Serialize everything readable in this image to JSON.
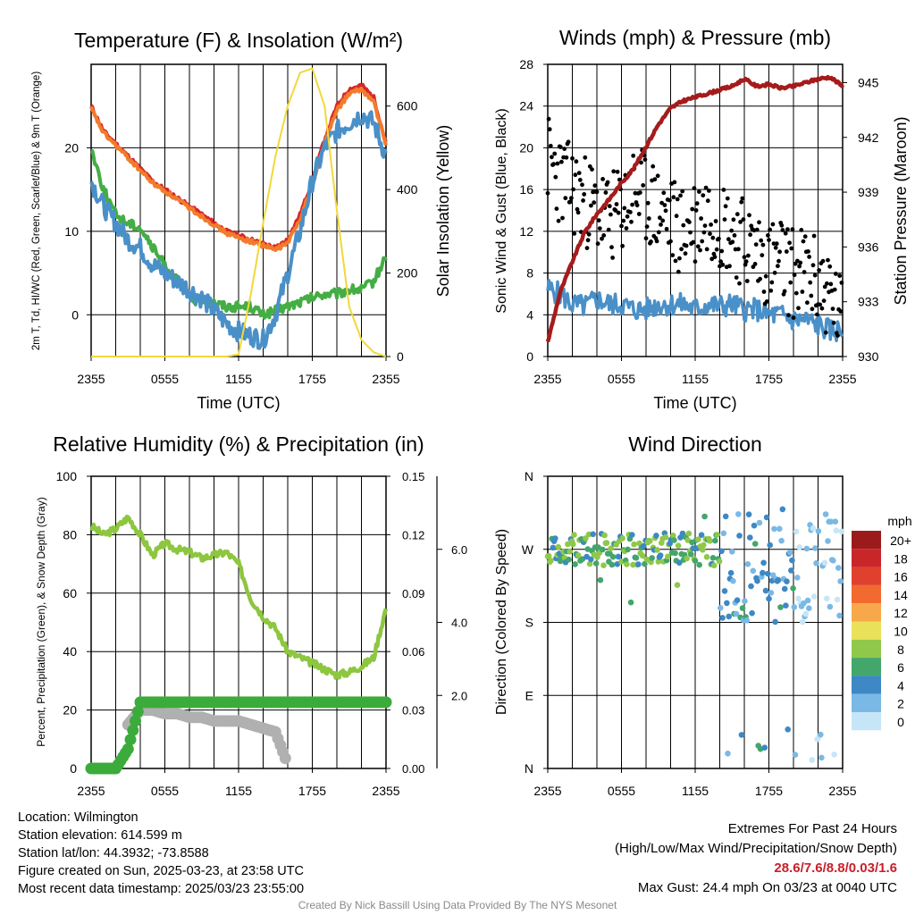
{
  "chart_data": [
    {
      "type": "line",
      "title": "Temperature (F) & Insolation (W/m²)",
      "xlabel": "Time (UTC)",
      "ylabel_left": "2m T, Td, HI/WC (Red, Green, Scarlet/Blue) & 9m T (Orange)",
      "ylabel_right": "Solar Insolation (Yellow)",
      "x_ticks": [
        "2355",
        "0555",
        "1155",
        "1755",
        "2355"
      ],
      "ylim": [
        -5,
        30
      ],
      "y_ticks": [
        0,
        10,
        20
      ],
      "ylim_right": [
        0,
        700
      ],
      "y_ticks_right": [
        0,
        200,
        400,
        600
      ],
      "x_hours": [
        0,
        1,
        2,
        3,
        4,
        5,
        6,
        7,
        8,
        9,
        10,
        11,
        12,
        13,
        14,
        15,
        16,
        17,
        18,
        19,
        20,
        21,
        22,
        23,
        24
      ],
      "series": [
        {
          "name": "2m T",
          "color": "#d62728",
          "values": [
            25,
            22,
            20.5,
            19,
            17.5,
            16,
            15,
            14,
            13,
            12,
            11,
            10,
            9.5,
            9,
            8.5,
            8,
            9,
            12,
            16,
            21,
            25,
            27,
            27.5,
            26,
            20.5
          ]
        },
        {
          "name": "9m T",
          "color": "#f37b2b",
          "values": [
            24.7,
            21.8,
            20.3,
            18.8,
            17.3,
            15.8,
            14.8,
            13.8,
            12.8,
            11.8,
            10.8,
            9.8,
            9.2,
            8.8,
            8.3,
            7.8,
            8.6,
            11.5,
            15.5,
            20.5,
            24.5,
            26.5,
            27,
            25.5,
            20.3
          ]
        },
        {
          "name": "Td",
          "color": "#44ad44",
          "values": [
            20,
            15,
            12,
            11,
            10.5,
            8,
            6,
            4,
            2,
            1.5,
            1.5,
            1,
            1,
            1,
            0,
            0.5,
            1,
            1.5,
            2,
            2.5,
            2.5,
            3,
            3,
            4,
            7
          ]
        },
        {
          "name": "WC",
          "color": "#4a90c8",
          "values": [
            16,
            13,
            11,
            9,
            8,
            6,
            5,
            4,
            3,
            2,
            0.5,
            -1,
            -2,
            -2.5,
            -3,
            0,
            5,
            10,
            16,
            20,
            22,
            23,
            24,
            23,
            19
          ]
        },
        {
          "name": "Solar Insolation",
          "color": "#f2d83a",
          "axis": "right",
          "values": [
            0,
            0,
            0,
            0,
            0,
            0,
            0,
            0,
            0,
            0,
            0,
            0,
            5,
            150,
            320,
            480,
            600,
            680,
            690,
            600,
            350,
            120,
            40,
            10,
            0
          ]
        }
      ]
    },
    {
      "type": "line",
      "title": "Winds (mph) & Pressure (mb)",
      "xlabel": "Time (UTC)",
      "ylabel_left": "Sonic Wind & Gust (Blue, Black)",
      "ylabel_right": "Station Pressure (Maroon)",
      "x_ticks": [
        "2355",
        "0555",
        "1155",
        "1755",
        "2355"
      ],
      "ylim": [
        0,
        28
      ],
      "y_ticks": [
        0,
        4,
        8,
        12,
        16,
        20,
        24,
        28
      ],
      "ylim_right": [
        930,
        946
      ],
      "y_ticks_right": [
        930,
        933,
        936,
        939,
        942,
        945
      ],
      "x_hours": [
        0,
        1,
        2,
        3,
        4,
        5,
        6,
        7,
        8,
        9,
        10,
        11,
        12,
        13,
        14,
        15,
        16,
        17,
        18,
        19,
        20,
        21,
        22,
        23,
        24
      ],
      "series": [
        {
          "name": "Sonic Wind",
          "color": "#4a90c8",
          "values": [
            6.5,
            6,
            5,
            4.8,
            5.5,
            5,
            5,
            4.5,
            4.5,
            5,
            5,
            5,
            4.5,
            5,
            4.8,
            5,
            4.5,
            4.5,
            4,
            4,
            3.5,
            3.5,
            3,
            2.5,
            2.5
          ]
        },
        {
          "name": "Gust",
          "color": "#000000",
          "values": [
            19,
            17,
            16,
            15,
            14,
            13,
            14,
            16,
            15,
            14,
            13,
            12,
            13,
            14,
            13,
            12,
            11,
            10,
            9,
            9,
            8,
            8,
            7,
            6,
            3
          ]
        },
        {
          "name": "Station Pressure",
          "color": "#a51b1b",
          "axis": "right",
          "values": [
            930.8,
            933.5,
            935.2,
            936.8,
            937.8,
            938.6,
            939.5,
            940.3,
            941.5,
            942.7,
            943.6,
            944.0,
            944.2,
            944.4,
            944.6,
            944.8,
            945.2,
            944.8,
            944.9,
            944.7,
            944.8,
            945.0,
            945.2,
            945.3,
            944.8
          ]
        }
      ]
    },
    {
      "type": "line",
      "title": "Relative Humidity (%) & Precipitation (in)",
      "ylabel_left": "Percent, Precipitation (Green), & Snow Depth (Gray)",
      "x_ticks": [
        "2355",
        "0555",
        "1155",
        "1755",
        "2355"
      ],
      "ylim": [
        0,
        100
      ],
      "y_ticks": [
        0,
        20,
        40,
        60,
        80,
        100
      ],
      "precip_axis_ticks": [
        "0.00",
        "0.03",
        "0.06",
        "0.09",
        "0.12",
        "0.15"
      ],
      "snow_axis_ticks": [
        "2.0",
        "4.0",
        "6.0"
      ],
      "x_hours": [
        0,
        1,
        2,
        3,
        4,
        5,
        6,
        7,
        8,
        9,
        10,
        11,
        12,
        13,
        14,
        15,
        16,
        17,
        18,
        19,
        20,
        21,
        22,
        23,
        24
      ],
      "series": [
        {
          "name": "Relative Humidity",
          "color": "#8dc63f",
          "values": [
            83,
            80,
            82,
            86,
            80,
            73,
            77,
            75,
            74,
            72,
            73,
            74,
            70,
            58,
            52,
            48,
            40,
            38,
            36,
            34,
            32,
            33,
            35,
            38,
            55
          ]
        },
        {
          "name": "Precipitation",
          "color": "#3bab3b",
          "values": [
            0,
            0,
            0,
            0.01,
            0.034,
            0.034,
            0.034,
            0.034,
            0.034,
            0.034,
            0.034,
            0.034,
            0.034,
            0.034,
            0.034,
            0.034,
            0.034,
            0.034,
            0.034,
            0.034,
            0.034,
            0.034,
            0.034,
            0.034,
            0.034
          ]
        },
        {
          "name": "Snow Depth",
          "color": "#b0b0b0",
          "values": [
            null,
            null,
            null,
            1.2,
            1.6,
            1.6,
            1.5,
            1.5,
            1.4,
            1.4,
            1.3,
            1.3,
            1.3,
            1.2,
            1.1,
            1.0,
            0.1,
            null,
            null,
            null,
            null,
            null,
            null,
            null,
            null
          ]
        }
      ]
    },
    {
      "type": "scatter",
      "title": "Wind Direction",
      "ylabel_left": "Direction (Colored By Speed)",
      "x_ticks": [
        "2355",
        "0555",
        "1155",
        "1755",
        "2355"
      ],
      "y_ticks": [
        "N",
        "E",
        "S",
        "W",
        "N"
      ],
      "ylim": [
        0,
        360
      ],
      "legend_title": "mph",
      "legend_position": "right",
      "legend": [
        {
          "label": "20+",
          "color": "#9b1b1b"
        },
        {
          "label": "18",
          "color": "#c9262a"
        },
        {
          "label": "16",
          "color": "#e0402e"
        },
        {
          "label": "14",
          "color": "#f26a30"
        },
        {
          "label": "12",
          "color": "#f7a84a"
        },
        {
          "label": "10",
          "color": "#e9e15a"
        },
        {
          "label": "8",
          "color": "#8fc84a"
        },
        {
          "label": "6",
          "color": "#43a66b"
        },
        {
          "label": "4",
          "color": "#3d88c5"
        },
        {
          "label": "2",
          "color": "#7ab9e6"
        },
        {
          "label": "0",
          "color": "#c6e6f7"
        }
      ]
    }
  ],
  "info": {
    "location": "Location: Wilmington",
    "elevation": "Station elevation: 614.599 m",
    "latlon": "Station lat/lon: 44.3932; -73.8588",
    "created": "Figure created on Sun, 2025-03-23, at 23:58 UTC",
    "recent": "Most recent data timestamp: 2025/03/23 23:55:00"
  },
  "extremes": {
    "title": "Extremes For Past 24 Hours",
    "subtitle": "(High/Low/Max Wind/Precipitation/Snow Depth)",
    "values": "28.6/7.6/8.8/0.03/1.6",
    "gust": "Max Gust: 24.4 mph On 03/23 at 0040 UTC"
  },
  "credit": "Created By Nick Bassill Using Data Provided By The NYS Mesonet"
}
